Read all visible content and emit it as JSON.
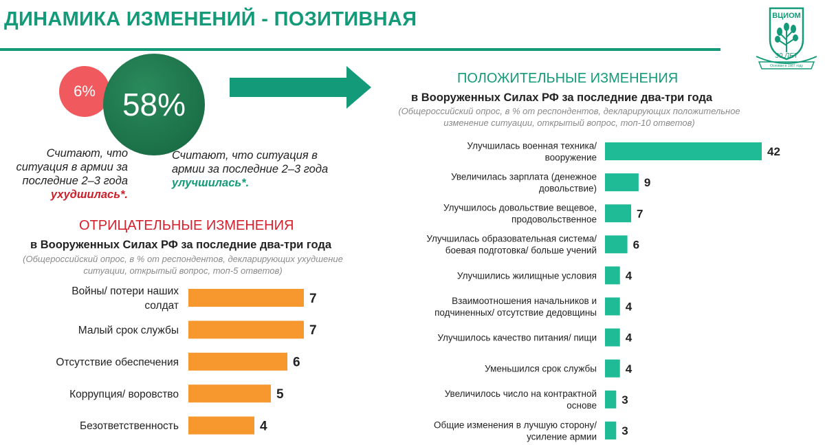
{
  "header": {
    "title": "ДИНАМИКА ИЗМЕНЕНИЙ - ПОЗИТИВНАЯ"
  },
  "logo": {
    "name": "ВЦИОМ",
    "years": "30 ЛЕТ",
    "founded": "Основан в 1987 году"
  },
  "summary": {
    "negative_pct": "6%",
    "positive_pct": "58%",
    "negative_text_before": "Считают, что ситуация в армии за последние 2–3 года ",
    "negative_highlight": "ухудшилась*.",
    "positive_text_before": "Считают, что ситуация в армии за последние 2–3 года ",
    "positive_highlight": "улучшилась*."
  },
  "colors": {
    "brand_green": "#139a78",
    "positive_bar": "#1fba96",
    "negative_bar": "#f7982e",
    "negative_circle": "#f05a5e",
    "positive_circle": "#15653f",
    "negative_title": "#d61f2c"
  },
  "chart_data": [
    {
      "type": "bar",
      "orientation": "horizontal",
      "title": "ПОЛОЖИТЕЛЬНЫЕ ИЗМЕНЕНИЯ",
      "subtitle": "в Вооруженных Силах РФ за последние два-три года",
      "note": "(Общероссийский опрос, в % от респондентов, декларирующих положительное изменение ситуации, открытый вопрос, топ-10 ответов)",
      "categories": [
        "Улучшилась военная техника/ вооружение",
        "Увеличилась зарплата (денежное довольствие)",
        "Улучшилось довольствие вещевое, продовольственное",
        "Улучшилась образовательная система/ боевая подготовка/ больше учений",
        "Улучшились жилищные условия",
        "Взаимоотношения начальников и подчиненных/ отсутствие дедовщины",
        "Улучшилось качество питания/ пищи",
        "Уменьшился срок службы",
        "Увеличилось число на контрактной основе",
        "Общие изменения в лучшую сторону/ усиление армии"
      ],
      "category_lines": [
        [
          "Улучшилась военная техника/",
          "вооружение"
        ],
        [
          "Увеличилась зарплата (денежное",
          "довольствие)"
        ],
        [
          "Улучшилось довольствие вещевое,",
          "продовольственное"
        ],
        [
          "Улучшилась образовательная система/",
          "боевая подготовка/ больше учений"
        ],
        [
          "Улучшились жилищные условия"
        ],
        [
          "Взаимоотношения начальников и",
          "подчиненных/ отсутствие дедовщины"
        ],
        [
          "Улучшилось качество питания/ пищи"
        ],
        [
          "Уменьшился срок службы"
        ],
        [
          "Увеличилось число на контрактной",
          "основе"
        ],
        [
          "Общие изменения в лучшую сторону/",
          "усиление армии"
        ]
      ],
      "values": [
        42,
        9,
        7,
        6,
        4,
        4,
        4,
        4,
        3,
        3
      ],
      "color": "#1fba96"
    },
    {
      "type": "bar",
      "orientation": "horizontal",
      "title": "ОТРИЦАТЕЛЬНЫЕ ИЗМЕНЕНИЯ",
      "subtitle": "в Вооруженных Силах РФ за последние два-три года",
      "note": "(Общероссийский опрос, в % от респондентов, декларирующих ухудшение ситуации, открытый вопрос, топ-5 ответов)",
      "categories": [
        "Войны/ потери наших солдат",
        "Малый срок службы",
        "Отсутствие обеспечения",
        "Коррупция/ воровство",
        "Безответственность"
      ],
      "category_lines": [
        [
          "Войны/ потери наших",
          "солдат"
        ],
        [
          "Малый срок службы"
        ],
        [
          "Отсутствие обеспечения"
        ],
        [
          "Коррупция/ воровство"
        ],
        [
          "Безответственность"
        ]
      ],
      "values": [
        7,
        7,
        6,
        5,
        4
      ],
      "color": "#f7982e"
    }
  ]
}
